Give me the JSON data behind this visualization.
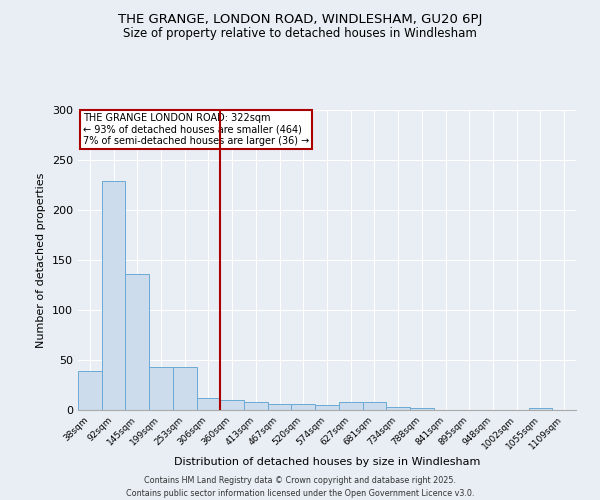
{
  "title1": "THE GRANGE, LONDON ROAD, WINDLESHAM, GU20 6PJ",
  "title2": "Size of property relative to detached houses in Windlesham",
  "xlabel": "Distribution of detached houses by size in Windlesham",
  "ylabel": "Number of detached properties",
  "categories": [
    "38sqm",
    "92sqm",
    "145sqm",
    "199sqm",
    "253sqm",
    "306sqm",
    "360sqm",
    "413sqm",
    "467sqm",
    "520sqm",
    "574sqm",
    "627sqm",
    "681sqm",
    "734sqm",
    "788sqm",
    "841sqm",
    "895sqm",
    "948sqm",
    "1002sqm",
    "1055sqm",
    "1109sqm"
  ],
  "values": [
    39,
    229,
    136,
    43,
    43,
    12,
    10,
    8,
    6,
    6,
    5,
    8,
    8,
    3,
    2,
    0,
    0,
    0,
    0,
    2,
    0
  ],
  "bar_color": "#ccdcec",
  "bar_edge_color": "#6aaad4",
  "vline_x": 5.5,
  "vline_color": "#aa0000",
  "annotation_text": "THE GRANGE LONDON ROAD: 322sqm\n← 93% of detached houses are smaller (464)\n7% of semi-detached houses are larger (36) →",
  "annotation_box_color": "white",
  "annotation_box_edge": "#aa0000",
  "ylim": [
    0,
    300
  ],
  "yticks": [
    0,
    50,
    100,
    150,
    200,
    250,
    300
  ],
  "footer": "Contains HM Land Registry data © Crown copyright and database right 2025.\nContains public sector information licensed under the Open Government Licence v3.0.",
  "bg_color": "#e8eef4",
  "grid_color": "white"
}
